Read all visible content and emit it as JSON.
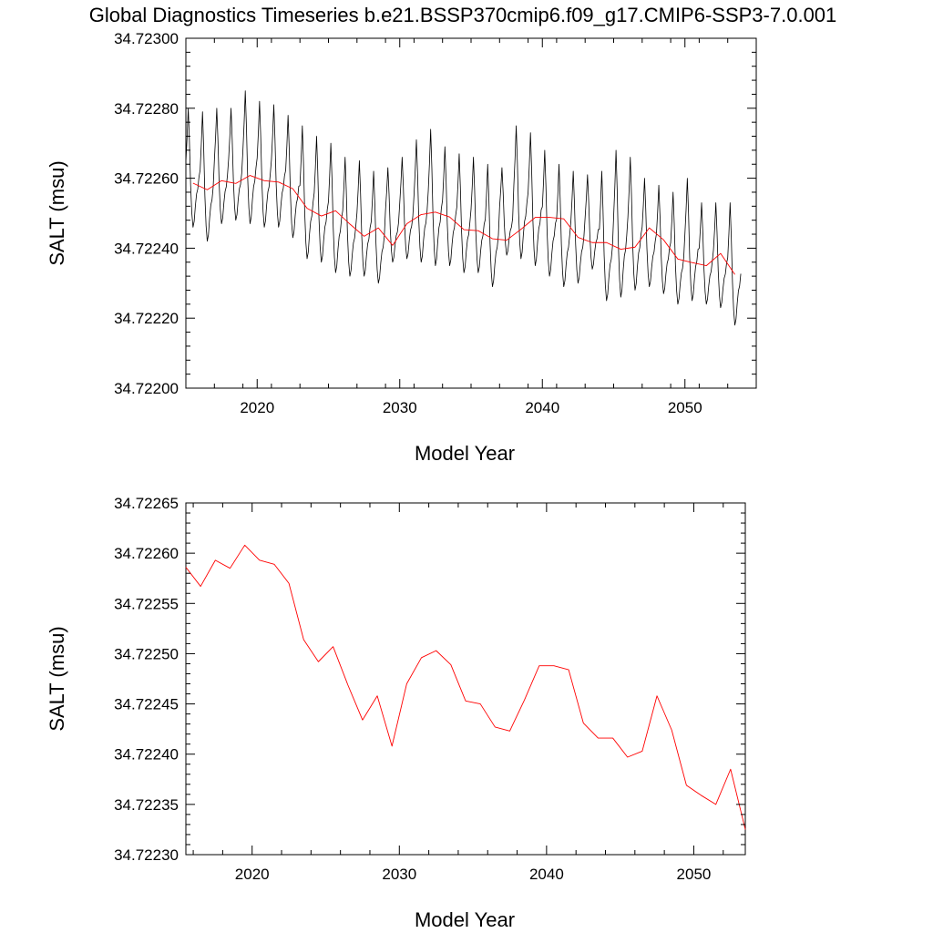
{
  "title": "Global Diagnostics Timeseries b.e21.BSSP370cmip6.f09_g17.CMIP6-SSP3-7.0.001",
  "colors": {
    "monthly": "#000000",
    "annual": "#ff0000",
    "axes": "#000000"
  },
  "chart_data": [
    {
      "type": "line",
      "xlabel": "Model Year",
      "ylabel": "SALT (msu)",
      "xlim": [
        2015,
        2055
      ],
      "ylim": [
        34.722,
        34.723
      ],
      "xticks": [
        "2020",
        "2030",
        "2040",
        "2050"
      ],
      "yticks": [
        "34.72200",
        "34.72220",
        "34.72240",
        "34.72260",
        "34.72280",
        "34.72300"
      ],
      "grid": false,
      "series": [
        {
          "kind": "monthly",
          "color": "#000000",
          "year_start": 2015,
          "year_peaks": [
            34.7228,
            34.72279,
            34.7228,
            34.7228,
            34.72285,
            34.72282,
            34.72281,
            34.72278,
            34.72275,
            34.72272,
            34.7227,
            34.72266,
            34.72265,
            34.72262,
            34.72263,
            34.72266,
            34.72271,
            34.72274,
            34.72269,
            34.72267,
            34.72266,
            34.72264,
            34.72263,
            34.72275,
            34.72273,
            34.72268,
            34.72264,
            34.72262,
            34.72261,
            34.72262,
            34.72268,
            34.72266,
            34.7226,
            34.72258,
            34.72256,
            34.7226,
            34.72253,
            34.72253,
            34.72253
          ],
          "year_troughs": [
            34.72246,
            34.72242,
            34.72247,
            34.72248,
            34.72247,
            34.72246,
            34.72246,
            34.72243,
            34.72237,
            34.72236,
            34.72233,
            34.72232,
            34.72232,
            34.7223,
            34.72236,
            34.72237,
            34.72236,
            34.72235,
            34.72235,
            34.72233,
            34.72233,
            34.72229,
            34.72238,
            34.72237,
            34.72235,
            34.72232,
            34.72229,
            34.7223,
            34.72234,
            34.72225,
            34.72226,
            34.72228,
            34.72229,
            34.72227,
            34.72224,
            34.72225,
            34.72224,
            34.72223,
            34.72218
          ]
        },
        {
          "kind": "annual",
          "color": "#ff0000",
          "x": [
            2015.5,
            2016.5,
            2017.5,
            2018.5,
            2019.5,
            2020.5,
            2021.5,
            2022.5,
            2023.5,
            2024.5,
            2025.5,
            2026.5,
            2027.5,
            2028.5,
            2029.5,
            2030.5,
            2031.5,
            2032.5,
            2033.5,
            2034.5,
            2035.5,
            2036.5,
            2037.5,
            2038.5,
            2039.5,
            2040.5,
            2041.5,
            2042.5,
            2043.5,
            2044.5,
            2045.5,
            2046.5,
            2047.5,
            2048.5,
            2049.5,
            2050.5,
            2051.5,
            2052.5,
            2053.5
          ],
          "y": [
            34.722586,
            34.722567,
            34.722593,
            34.722585,
            34.722608,
            34.722593,
            34.722589,
            34.72257,
            34.722514,
            34.722492,
            34.722507,
            34.722469,
            34.722434,
            34.722458,
            34.722408,
            34.72247,
            34.722496,
            34.722503,
            34.722489,
            34.722453,
            34.72245,
            34.722427,
            34.722423,
            34.722454,
            34.722488,
            34.722488,
            34.722484,
            34.722431,
            34.722416,
            34.722416,
            34.722397,
            34.722403,
            34.722458,
            34.722424,
            34.722369,
            34.722359,
            34.72235,
            34.722385,
            34.722325
          ]
        }
      ]
    },
    {
      "type": "line",
      "xlabel": "Model Year",
      "ylabel": "SALT (msu)",
      "xlim": [
        2015.5,
        2053.5
      ],
      "ylim": [
        34.7223,
        34.72265
      ],
      "xticks": [
        "2020",
        "2030",
        "2040",
        "2050"
      ],
      "yticks": [
        "34.72230",
        "34.72235",
        "34.72240",
        "34.72245",
        "34.72250",
        "34.72255",
        "34.72260",
        "34.72265"
      ],
      "grid": false,
      "series": [
        {
          "kind": "annual",
          "color": "#ff0000",
          "x": [
            2015.5,
            2016.5,
            2017.5,
            2018.5,
            2019.5,
            2020.5,
            2021.5,
            2022.5,
            2023.5,
            2024.5,
            2025.5,
            2026.5,
            2027.5,
            2028.5,
            2029.5,
            2030.5,
            2031.5,
            2032.5,
            2033.5,
            2034.5,
            2035.5,
            2036.5,
            2037.5,
            2038.5,
            2039.5,
            2040.5,
            2041.5,
            2042.5,
            2043.5,
            2044.5,
            2045.5,
            2046.5,
            2047.5,
            2048.5,
            2049.5,
            2050.5,
            2051.5,
            2052.5,
            2053.5
          ],
          "y": [
            34.722586,
            34.722567,
            34.722593,
            34.722585,
            34.722608,
            34.722593,
            34.722589,
            34.72257,
            34.722514,
            34.722492,
            34.722507,
            34.722469,
            34.722434,
            34.722458,
            34.722408,
            34.72247,
            34.722496,
            34.722503,
            34.722489,
            34.722453,
            34.72245,
            34.722427,
            34.722423,
            34.722454,
            34.722488,
            34.722488,
            34.722484,
            34.722431,
            34.722416,
            34.722416,
            34.722397,
            34.722403,
            34.722458,
            34.722424,
            34.722369,
            34.722359,
            34.72235,
            34.722385,
            34.722325
          ]
        }
      ]
    }
  ]
}
